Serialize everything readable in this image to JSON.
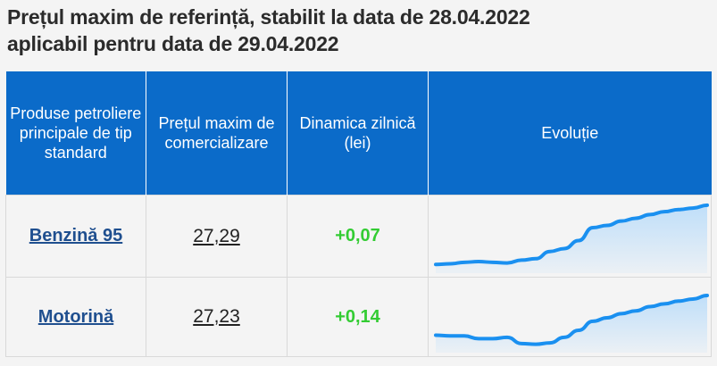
{
  "title": {
    "line1": "Prețul maxim de referință, stabilit la data de 28.04.2022",
    "line2": "aplicabil pentru data de 29.04.2022"
  },
  "table": {
    "headers": [
      "Produse petroliere principale de tip standard",
      "Prețul maxim de comercializare",
      "Dinamica zilnică (lei)",
      "Evoluție"
    ],
    "rows": [
      {
        "product": "Benzină 95",
        "price": "27,29",
        "delta": "+0,07",
        "trend": [
          0.12,
          0.13,
          0.15,
          0.16,
          0.15,
          0.14,
          0.18,
          0.2,
          0.3,
          0.34,
          0.45,
          0.63,
          0.66,
          0.72,
          0.76,
          0.81,
          0.85,
          0.88,
          0.9,
          0.94
        ]
      },
      {
        "product": "Motorină",
        "price": "27,23",
        "delta": "+0,14",
        "trend": [
          0.25,
          0.24,
          0.24,
          0.2,
          0.2,
          0.22,
          0.13,
          0.12,
          0.14,
          0.22,
          0.32,
          0.45,
          0.5,
          0.56,
          0.6,
          0.66,
          0.7,
          0.74,
          0.77,
          0.82
        ]
      }
    ]
  },
  "colors": {
    "header_bg": "#0b6bc9",
    "link": "#1f4f8f",
    "delta_positive": "#33cc33",
    "spark_line": "#1a90f0",
    "spark_fill": "#b9dcfa"
  }
}
